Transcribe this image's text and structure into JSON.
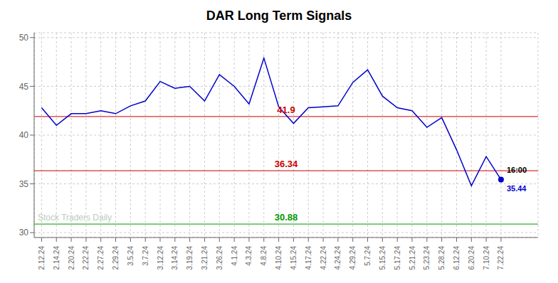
{
  "chart_data": {
    "type": "line",
    "title": "DAR Long Term Signals",
    "categories": [
      "2.12.24",
      "2.14.24",
      "2.20.24",
      "2.22.24",
      "2.27.24",
      "2.29.24",
      "3.5.24",
      "3.7.24",
      "3.12.24",
      "3.14.24",
      "3.19.24",
      "3.21.24",
      "3.26.24",
      "4.1.24",
      "4.3.24",
      "4.8.24",
      "4.10.24",
      "4.15.24",
      "4.17.24",
      "4.22.24",
      "4.24.24",
      "4.29.24",
      "5.7.24",
      "5.15.24",
      "5.17.24",
      "5.21.24",
      "5.23.24",
      "5.28.24",
      "6.12.24",
      "6.20.24",
      "7.10.24",
      "7.22.24"
    ],
    "values": [
      42.8,
      41.0,
      42.2,
      42.2,
      42.5,
      42.2,
      43.0,
      43.5,
      45.5,
      44.8,
      45.0,
      43.5,
      46.2,
      45.0,
      43.2,
      47.9,
      42.9,
      41.2,
      42.8,
      42.9,
      43.0,
      45.4,
      46.7,
      44.0,
      42.8,
      42.5,
      40.8,
      41.8,
      38.5,
      34.8,
      37.8,
      35.44
    ],
    "color": "#0000cc",
    "hlines": [
      {
        "value": 41.9,
        "label": "41.9",
        "color": "#cc0000"
      },
      {
        "value": 36.34,
        "label": "36.34",
        "color": "#cc0000"
      },
      {
        "value": 30.88,
        "label": "30.88",
        "color": "#009900"
      }
    ],
    "watermark": "Stock Traders Daily",
    "annotations": [
      {
        "text": "16:00",
        "color": "#000000"
      },
      {
        "text": "35.44",
        "color": "#0000cc"
      }
    ],
    "ylim": [
      29.5,
      50.5
    ],
    "yticks": [
      30,
      35,
      40,
      45,
      50
    ],
    "grid": true
  }
}
